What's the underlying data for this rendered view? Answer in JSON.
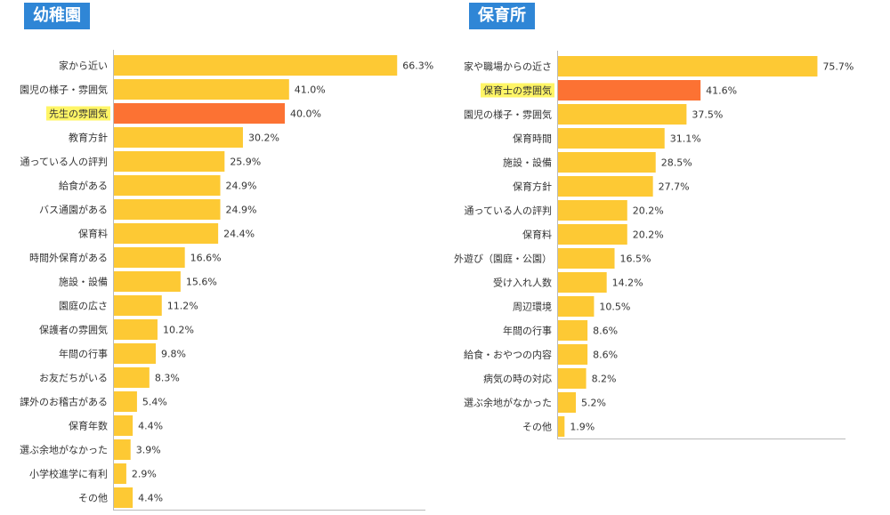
{
  "chart_data": [
    {
      "type": "bar",
      "orientation": "horizontal",
      "title": "幼稚園",
      "categories": [
        "家から近い",
        "園児の様子・雰囲気",
        "先生の雰囲気",
        "教育方針",
        "通っている人の評判",
        "給食がある",
        "バス通園がある",
        "保育料",
        "時間外保育がある",
        "施設・設備",
        "園庭の広さ",
        "保護者の雰囲気",
        "年間の行事",
        "お友だちがいる",
        "課外のお稽古がある",
        "保育年数",
        "選ぶ余地がなかった",
        "小学校進学に有利",
        "その他"
      ],
      "values": [
        66.3,
        41.0,
        40.0,
        30.2,
        25.9,
        24.9,
        24.9,
        24.4,
        16.6,
        15.6,
        11.2,
        10.2,
        9.8,
        8.3,
        5.4,
        4.4,
        3.9,
        2.9,
        4.4
      ],
      "value_labels": [
        "66.3%",
        "41.0%",
        "40.0%",
        "30.2%",
        "25.9%",
        "24.9%",
        "24.9%",
        "24.4%",
        "16.6%",
        "15.6%",
        "11.2%",
        "10.2%",
        "9.8%",
        "8.3%",
        "5.4%",
        "4.4%",
        "3.9%",
        "2.9%",
        "4.4%"
      ],
      "highlight_index": 2,
      "xlim": [
        0,
        100
      ],
      "grid": false,
      "xlabel": "",
      "ylabel": ""
    },
    {
      "type": "bar",
      "orientation": "horizontal",
      "title": "保育所",
      "categories": [
        "家や職場からの近さ",
        "保育士の雰囲気",
        "園児の様子・雰囲気",
        "保育時間",
        "施設・設備",
        "保育方針",
        "通っている人の評判",
        "保育料",
        "外遊び（園庭・公園）",
        "受け入れ人数",
        "周辺環境",
        "年間の行事",
        "給食・おやつの内容",
        "病気の時の対応",
        "選ぶ余地がなかった",
        "その他"
      ],
      "values": [
        75.7,
        41.6,
        37.5,
        31.1,
        28.5,
        27.7,
        20.2,
        20.2,
        16.5,
        14.2,
        10.5,
        8.6,
        8.6,
        8.2,
        5.2,
        1.9
      ],
      "value_labels": [
        "75.7%",
        "41.6%",
        "37.5%",
        "31.1%",
        "28.5%",
        "27.7%",
        "20.2%",
        "20.2%",
        "16.5%",
        "14.2%",
        "10.5%",
        "8.6%",
        "8.6%",
        "8.2%",
        "5.2%",
        "1.9%"
      ],
      "highlight_index": 1,
      "xlim": [
        0,
        100
      ],
      "grid": false,
      "xlabel": "",
      "ylabel": ""
    }
  ],
  "colors": {
    "bar": "#fdc934",
    "bar_highlight": "#fc7233",
    "label_highlight_bg": "#fff566",
    "title_bg": "#2f86d6",
    "axis": "#bbbbbb",
    "text": "#333333"
  }
}
